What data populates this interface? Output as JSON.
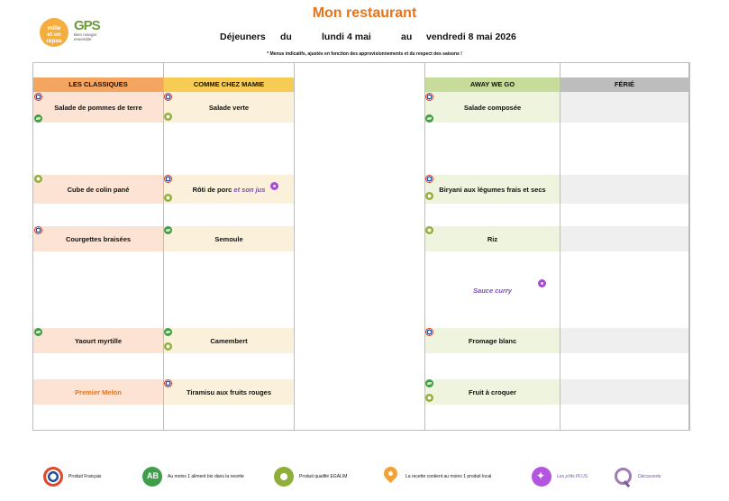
{
  "title": "Mon restaurant",
  "logos": {
    "mille_line1": "mille",
    "mille_line2": "et un",
    "mille_line3": "repas",
    "gps": "GPS",
    "gps_sub": "Bien manger ensemble"
  },
  "subtitle": {
    "meal": "Déjeuners",
    "du": "du",
    "start": "lundi 4 mai",
    "au": "au",
    "end": "vendredi 8 mai 2026"
  },
  "note": "* Menus indicatifs, ajustés en fonction des approvisionnements et du respect des saisons !",
  "colors": {
    "orange": "#f4a55f",
    "yellow": "#f7cc55",
    "green": "#c7dc9a",
    "grey": "#bdbdbd"
  },
  "columns": [
    {
      "header": "LES CLASSIQUES",
      "items": [
        "Salade de pommes de terre",
        "Cube de colin pané",
        "Courgettes braisées",
        "Yaourt myrtille",
        "Premier Melon"
      ]
    },
    {
      "header": "COMME CHEZ MAMIE",
      "items": [
        "Salade verte",
        "Rôti de porc",
        "Semoule",
        "Camembert",
        "Tiramisu aux fruits rouges"
      ],
      "extra": "et son jus"
    },
    {
      "header": "",
      "items": []
    },
    {
      "header": "AWAY WE GO",
      "items": [
        "Salade composée",
        "Biryani aux légumes frais et secs",
        "Riz",
        "Sauce curry",
        "Fromage blanc",
        "Fruit à croquer"
      ]
    },
    {
      "header": "FÉRIÉ",
      "items": []
    }
  ],
  "legend": [
    {
      "icon": "french-product-icon",
      "label": "Produit Français"
    },
    {
      "icon": "organic-icon",
      "label": "Au moins 1 aliment bio dans la recette"
    },
    {
      "icon": "egalim-icon",
      "label": "Produit qualifié EGALIM"
    },
    {
      "icon": "local-product-icon",
      "label": "La recette contient au moins 1 produit local"
    },
    {
      "icon": "ptits-plus-icon",
      "label": "Les p'tits PLUS"
    },
    {
      "icon": "discovery-icon",
      "label": "Découverte"
    }
  ]
}
